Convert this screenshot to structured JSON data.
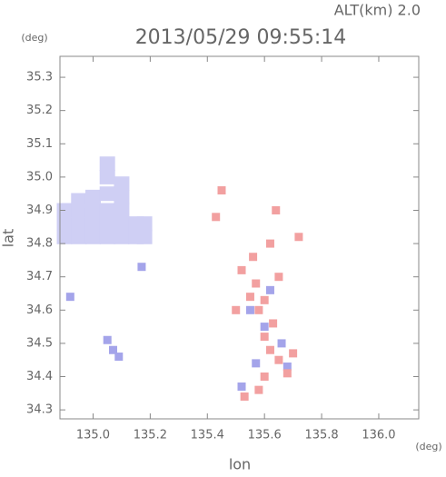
{
  "chart_data": {
    "type": "scatter",
    "title": "2013/05/29 09:55:14",
    "subtitle": "ALT(km)  2.0",
    "y_unit": "(deg)",
    "x_unit": "(deg)",
    "x_label": "lon",
    "y_label": "lat",
    "xlim": [
      134.884,
      136.14
    ],
    "ylim": [
      34.273,
      35.363
    ],
    "xticks": [
      {
        "value": 135.0,
        "label": "135.0"
      },
      {
        "value": 135.2,
        "label": "135.2"
      },
      {
        "value": 135.4,
        "label": "135.4"
      },
      {
        "value": 135.6,
        "label": "135.6"
      },
      {
        "value": 135.8,
        "label": "135.8"
      },
      {
        "value": 136.0,
        "label": "136.0"
      }
    ],
    "yticks": [
      34.3,
      34.4,
      34.5,
      34.6,
      34.7,
      34.8,
      34.9,
      {
        "value": 35.0,
        "label": "35.0"
      },
      35.1,
      35.2,
      35.3
    ],
    "series": [
      {
        "color": "#cfcff4",
        "x": [
          134.9,
          134.95,
          135.0,
          135.05,
          135.1,
          135.15,
          134.9,
          134.95,
          135.0,
          135.05,
          135.1,
          135.15,
          134.9,
          134.95,
          135.0,
          135.05,
          135.1,
          135.18,
          134.95,
          135.0,
          135.05,
          135.1,
          135.05,
          135.1,
          135.05,
          135.18
        ],
        "values": [
          34.82,
          34.82,
          34.82,
          34.82,
          34.82,
          34.82,
          34.86,
          34.86,
          34.86,
          34.86,
          34.86,
          34.86,
          34.9,
          34.9,
          34.9,
          34.9,
          34.9,
          34.82,
          34.93,
          34.94,
          34.95,
          34.94,
          35.0,
          34.98,
          35.04,
          34.86
        ]
      },
      {
        "color": "#a4a4ea",
        "x": [
          135.05,
          135.07,
          135.09,
          134.92,
          135.17,
          135.55,
          135.62,
          135.68,
          135.6,
          135.52,
          135.66,
          135.57
        ],
        "values": [
          34.51,
          34.48,
          34.46,
          34.64,
          34.73,
          34.6,
          34.66,
          34.43,
          34.55,
          34.37,
          34.5,
          34.44
        ]
      },
      {
        "color": "#f2a0a0",
        "x": [
          135.45,
          135.43,
          135.52,
          135.55,
          135.58,
          135.6,
          135.62,
          135.65,
          135.7,
          135.68,
          135.6,
          135.58,
          135.53,
          135.62,
          135.72,
          135.65,
          135.57,
          135.6,
          135.5,
          135.63,
          135.56,
          135.64
        ],
        "values": [
          34.96,
          34.88,
          34.72,
          34.64,
          34.6,
          34.52,
          34.48,
          34.45,
          34.47,
          34.41,
          34.4,
          34.36,
          34.34,
          34.8,
          34.82,
          34.7,
          34.68,
          34.63,
          34.6,
          34.56,
          34.76,
          34.9
        ]
      }
    ]
  }
}
